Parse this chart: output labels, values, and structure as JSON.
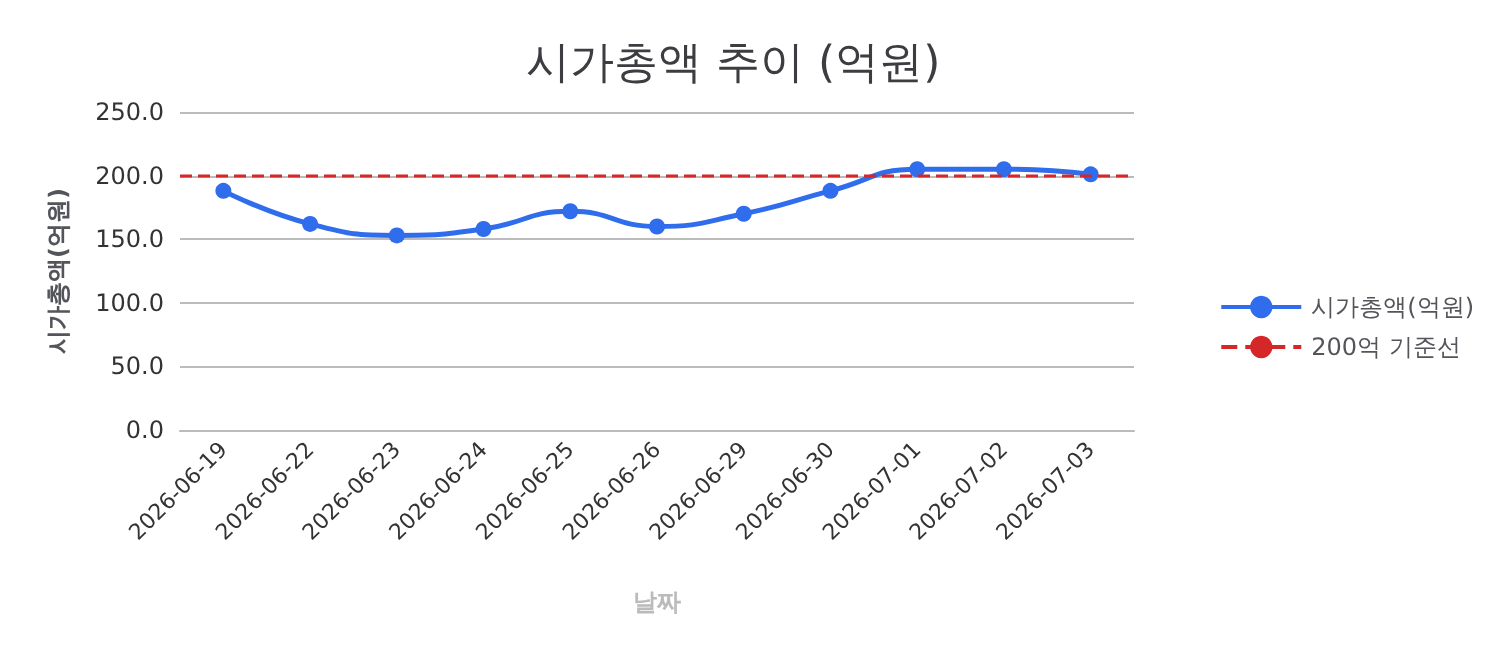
{
  "chart_data": {
    "type": "line",
    "title": "시가총액 추이 (억원)",
    "xlabel": "날짜",
    "ylabel": "시가총액(억원)",
    "categories": [
      "2026-06-19",
      "2026-06-22",
      "2026-06-23",
      "2026-06-24",
      "2026-06-25",
      "2026-06-26",
      "2026-06-29",
      "2026-06-30",
      "2026-07-01",
      "2026-07-02",
      "2026-07-03"
    ],
    "series": [
      {
        "name": "시가총액(억원)",
        "color": "#2f6ded",
        "values": [
          188,
          162,
          153,
          158,
          172,
          160,
          170,
          188,
          205,
          205,
          201
        ]
      }
    ],
    "ref_lines": [
      {
        "axis": "y",
        "value": 200,
        "label": "200억 기준선",
        "color": "#d62728",
        "line_style": "dashed"
      }
    ],
    "ylim": [
      0,
      250
    ],
    "yticks": [
      {
        "value": 0,
        "label": "0.0"
      },
      {
        "value": 50,
        "label": "50.0"
      },
      {
        "value": 100,
        "label": "100.0"
      },
      {
        "value": 150,
        "label": "150.0"
      },
      {
        "value": 200,
        "label": "200.0"
      },
      {
        "value": 250,
        "label": "250.0"
      }
    ],
    "grid": "y",
    "legend": "right",
    "marker": "circle",
    "line_style": "solid"
  }
}
